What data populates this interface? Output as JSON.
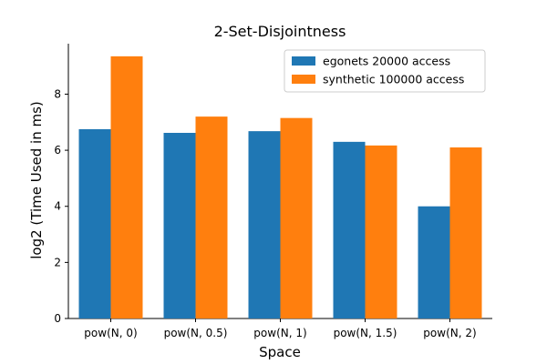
{
  "chart_data": {
    "type": "bar",
    "title": "2-Set-Disjointness",
    "xlabel": "Space",
    "ylabel": "log2 (Time Used in ms)",
    "categories": [
      "pow(N, 0)",
      "pow(N, 0.5)",
      "pow(N, 1)",
      "pow(N, 1.5)",
      "pow(N, 2)"
    ],
    "series": [
      {
        "name": "egonets 20000 access",
        "color": "#1f77b4",
        "values": [
          6.75,
          6.62,
          6.68,
          6.3,
          4.0
        ]
      },
      {
        "name": "synthetic 100000 access",
        "color": "#ff7f0e",
        "values": [
          9.35,
          7.2,
          7.15,
          6.17,
          6.1
        ]
      }
    ],
    "ylim": [
      0,
      9.8
    ],
    "yticks": [
      0,
      2,
      4,
      6,
      8
    ],
    "grid": false,
    "legend_position": "top-right"
  }
}
